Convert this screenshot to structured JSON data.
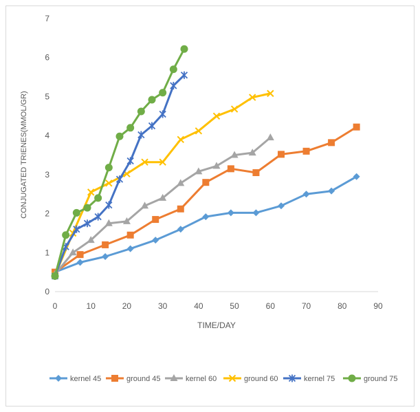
{
  "chart_data": {
    "type": "line",
    "title": "",
    "xlabel": "TIME/DAY",
    "ylabel": "CONJUGATED TRIENES(MMOL/GR)",
    "xlim": [
      0,
      90
    ],
    "ylim": [
      0,
      7
    ],
    "x_ticks": [
      "0",
      "10",
      "20",
      "30",
      "40",
      "50",
      "60",
      "70",
      "80",
      "90"
    ],
    "y_ticks": [
      "0",
      "1",
      "2",
      "3",
      "4",
      "5",
      "6",
      "7"
    ],
    "grid": false,
    "legend_position": "bottom",
    "series": [
      {
        "name": "kernel 45",
        "color": "#5b9bd5",
        "marker": "diamond",
        "x": [
          0,
          7,
          14,
          21,
          28,
          35,
          42,
          49,
          56,
          63,
          70,
          77,
          84
        ],
        "y": [
          0.5,
          0.75,
          0.9,
          1.1,
          1.32,
          1.6,
          1.92,
          2.02,
          2.02,
          2.2,
          2.5,
          2.58,
          2.95
        ]
      },
      {
        "name": "ground 45",
        "color": "#ed7d31",
        "marker": "square",
        "x": [
          0,
          7,
          14,
          21,
          28,
          35,
          42,
          49,
          56,
          63,
          70,
          77,
          84
        ],
        "y": [
          0.5,
          0.95,
          1.2,
          1.45,
          1.85,
          2.12,
          2.8,
          3.15,
          3.05,
          3.52,
          3.6,
          3.82,
          4.22
        ]
      },
      {
        "name": "kernel 60",
        "color": "#a5a5a5",
        "marker": "triangle",
        "x": [
          0,
          5,
          10,
          15,
          20,
          25,
          30,
          35,
          40,
          45,
          50,
          55,
          60
        ],
        "y": [
          0.45,
          1.0,
          1.32,
          1.75,
          1.8,
          2.2,
          2.4,
          2.78,
          3.08,
          3.22,
          3.5,
          3.56,
          3.95
        ]
      },
      {
        "name": "ground  60",
        "color": "#ffc000",
        "marker": "x",
        "x": [
          0,
          5,
          10,
          15,
          20,
          25,
          30,
          35,
          40,
          45,
          50,
          55,
          60
        ],
        "y": [
          0.42,
          1.5,
          2.55,
          2.78,
          3.02,
          3.32,
          3.32,
          3.9,
          4.12,
          4.5,
          4.68,
          4.98,
          5.08
        ]
      },
      {
        "name": "kernel 75",
        "color": "#4472c4",
        "marker": "star",
        "x": [
          0,
          3,
          6,
          9,
          12,
          15,
          18,
          21,
          24,
          27,
          30,
          33,
          36
        ],
        "y": [
          0.4,
          1.15,
          1.6,
          1.75,
          1.92,
          2.22,
          2.88,
          3.35,
          4.02,
          4.25,
          4.55,
          5.28,
          5.55
        ]
      },
      {
        "name": "ground 75",
        "color": "#70ad47",
        "marker": "circle",
        "x": [
          0,
          3,
          6,
          9,
          12,
          15,
          18,
          21,
          24,
          27,
          30,
          33,
          36
        ],
        "y": [
          0.4,
          1.45,
          2.02,
          2.15,
          2.4,
          3.18,
          3.98,
          4.2,
          4.62,
          4.92,
          5.1,
          5.7,
          6.22
        ]
      }
    ]
  }
}
